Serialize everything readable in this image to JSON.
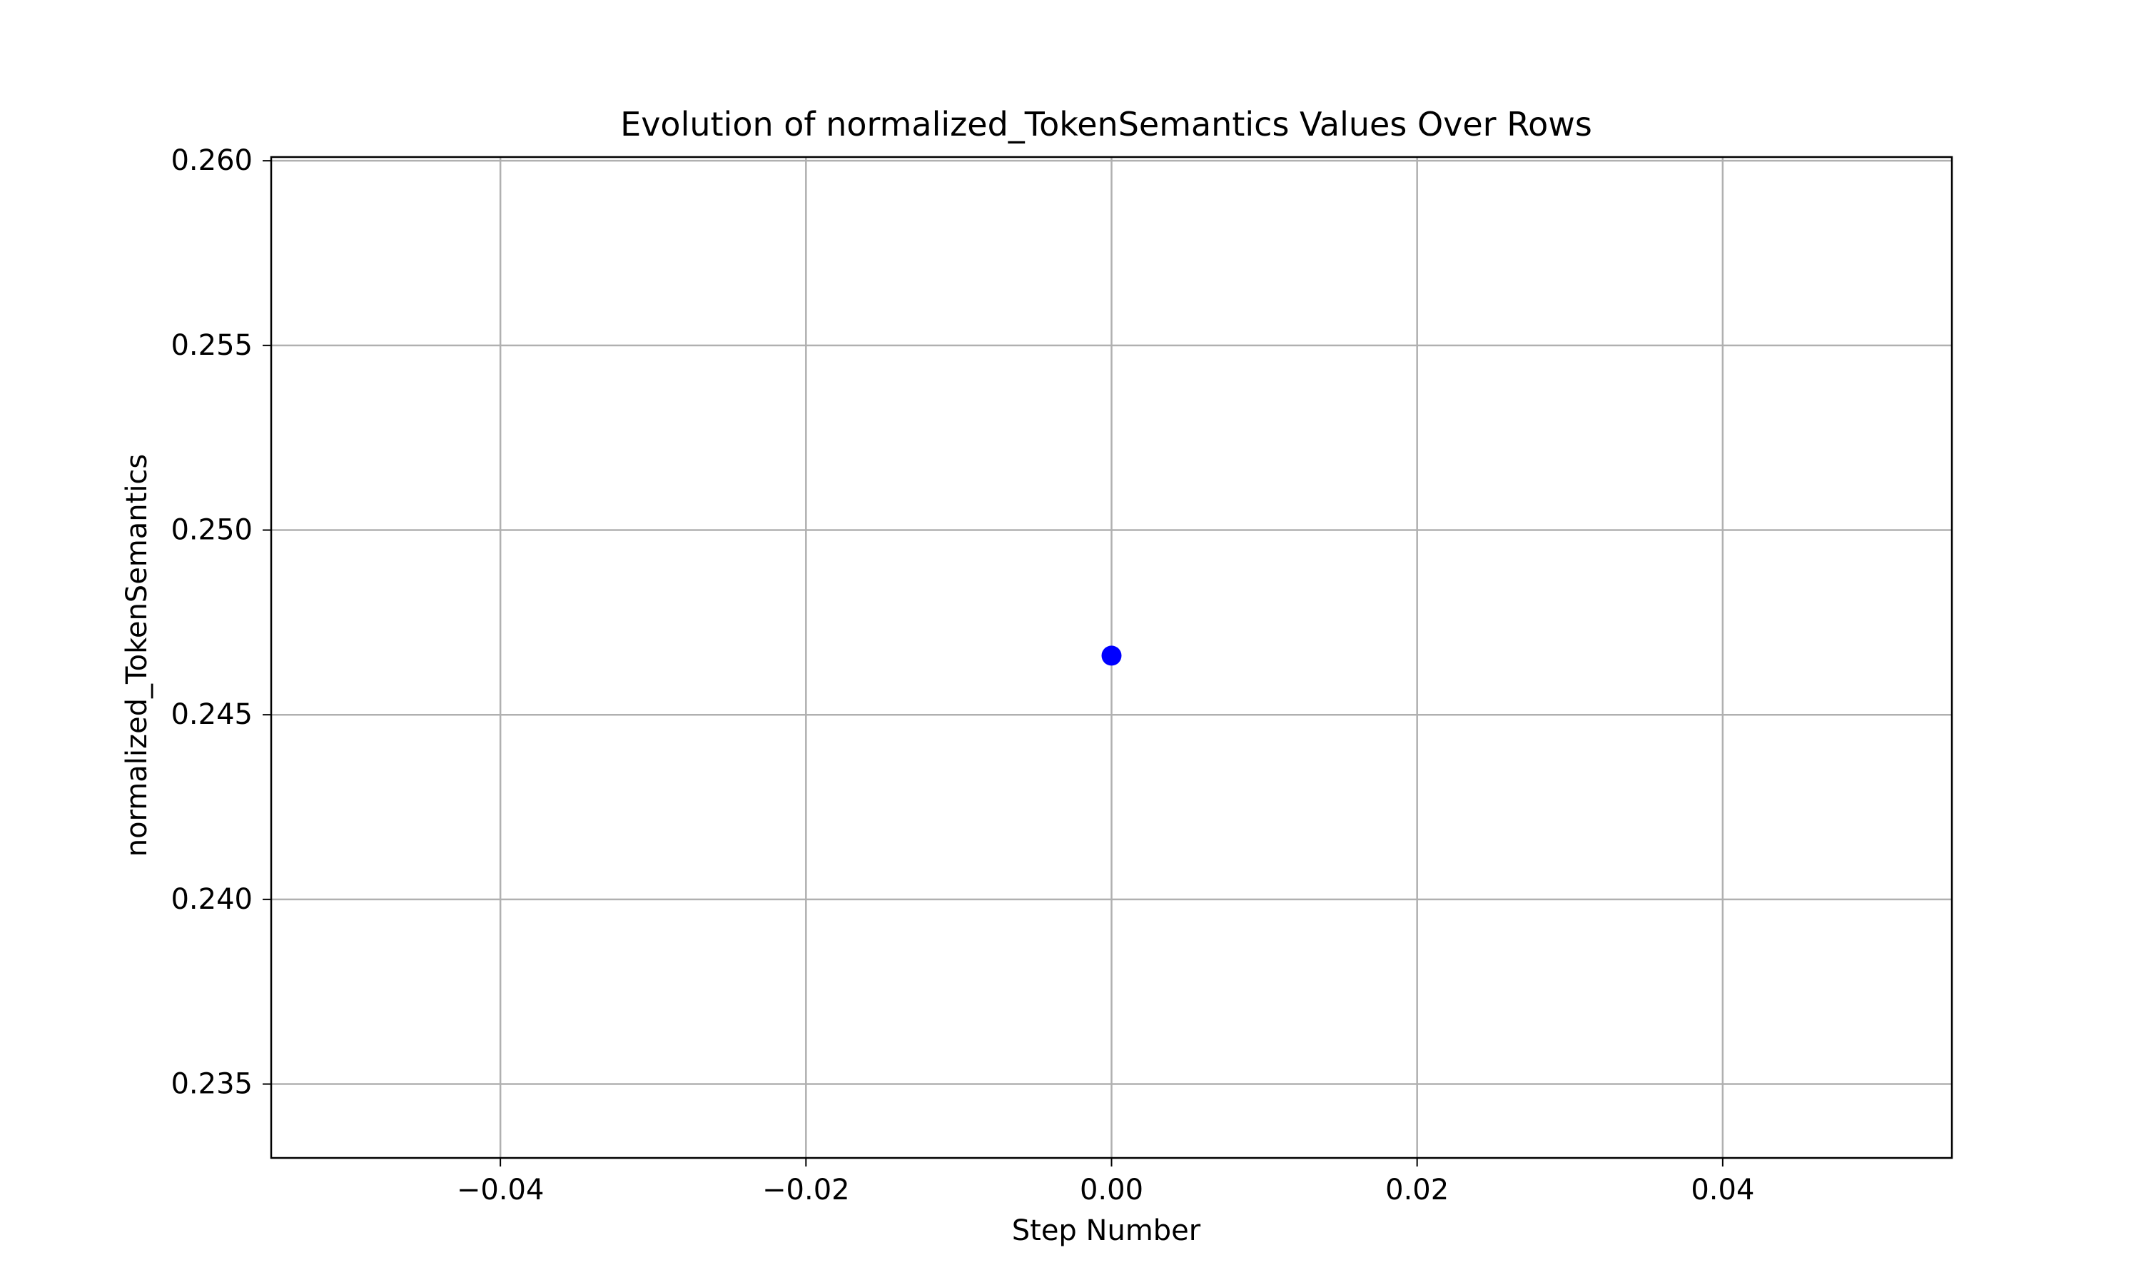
{
  "chart_data": {
    "type": "scatter",
    "title": "Evolution of normalized_TokenSemantics Values Over Rows",
    "xlabel": "Step Number",
    "ylabel": "normalized_TokenSemantics",
    "xlim": [
      -0.055,
      0.055
    ],
    "ylim": [
      0.233,
      0.2601
    ],
    "xticks": [
      -0.04,
      -0.02,
      0.0,
      0.02,
      0.04
    ],
    "xtick_labels": [
      "−0.04",
      "−0.02",
      "0.00",
      "0.02",
      "0.04"
    ],
    "yticks": [
      0.235,
      0.24,
      0.245,
      0.25,
      0.255,
      0.26
    ],
    "ytick_labels": [
      "0.235",
      "0.240",
      "0.245",
      "0.250",
      "0.255",
      "0.260"
    ],
    "grid": true,
    "series": [
      {
        "color": "#0000ff",
        "marker": "circle",
        "x": [
          0
        ],
        "y": [
          0.2466
        ]
      }
    ]
  }
}
